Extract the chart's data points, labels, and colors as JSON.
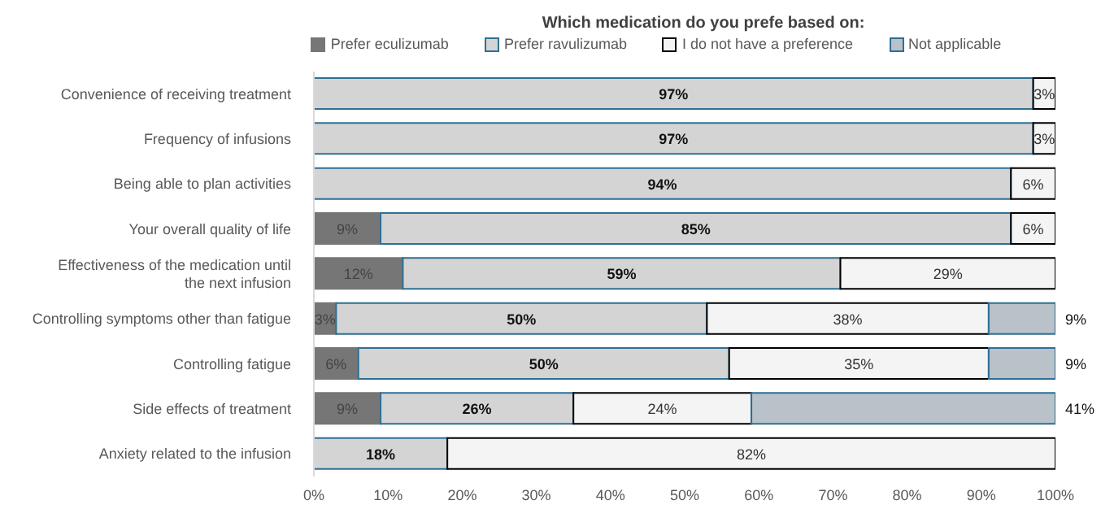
{
  "chart_data": {
    "type": "bar",
    "orientation": "horizontal",
    "stacked": true,
    "title": "Which medication do you prefe based on:",
    "legend": "top",
    "categories": [
      "Convenience of receiving treatment",
      "Frequency of infusions",
      "Being able to plan activities",
      "Your overall quality of life",
      "Effectiveness of the medication until the next infusion",
      "Controlling symptoms other than fatigue",
      "Controlling fatigue",
      "Side effects of treatment",
      "Anxiety related to the infusion"
    ],
    "series": [
      {
        "name": "Prefer eculizumab",
        "color": "#767676",
        "values": [
          null,
          null,
          null,
          9,
          12,
          3,
          6,
          9,
          null
        ],
        "value_labels": [
          null,
          null,
          null,
          "9%",
          "12%",
          "3%",
          "6%",
          "9%",
          null
        ]
      },
      {
        "name": "Prefer ravulizumab",
        "color": "#d4d4d4",
        "values": [
          97,
          97,
          94,
          85,
          59,
          50,
          50,
          26,
          18
        ],
        "value_labels": [
          "97%",
          "97%",
          "94%",
          "85%",
          "59%",
          "50%",
          "50%",
          "26%",
          "18%"
        ]
      },
      {
        "name": "I do not have a preference",
        "color": "#f4f4f4",
        "values": [
          3,
          3,
          6,
          6,
          29,
          38,
          35,
          24,
          82
        ],
        "value_labels": [
          "3%",
          "3%",
          "6%",
          "6%",
          "29%",
          "38%",
          "35%",
          "24%",
          "82%"
        ]
      },
      {
        "name": "Not applicable",
        "color": "#b8c2c8",
        "values": [
          null,
          null,
          null,
          null,
          null,
          9,
          9,
          41,
          null
        ],
        "value_labels": [
          null,
          null,
          null,
          null,
          null,
          "9%",
          "9%",
          "41%",
          null
        ]
      }
    ],
    "xlim": [
      0,
      100
    ],
    "xticks": [
      {
        "value": 0,
        "label": "0%"
      },
      {
        "value": 10,
        "label": "10%"
      },
      {
        "value": 20,
        "label": "20%"
      },
      {
        "value": 30,
        "label": "30%"
      },
      {
        "value": 40,
        "label": "40%"
      },
      {
        "value": 50,
        "label": "50%"
      },
      {
        "value": 60,
        "label": "60%"
      },
      {
        "value": 70,
        "label": "70%"
      },
      {
        "value": 80,
        "label": "80%"
      },
      {
        "value": 90,
        "label": "90%"
      },
      {
        "value": 100,
        "label": "100%"
      }
    ]
  }
}
